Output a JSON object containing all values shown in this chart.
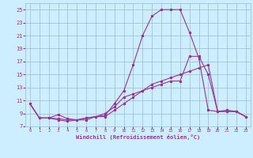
{
  "xlabel": "Windchill (Refroidissement éolien,°C)",
  "xlim": [
    -0.5,
    23.5
  ],
  "ylim": [
    7,
    26
  ],
  "yticks": [
    7,
    9,
    11,
    13,
    15,
    17,
    19,
    21,
    23,
    25
  ],
  "xticks": [
    0,
    1,
    2,
    3,
    4,
    5,
    6,
    7,
    8,
    9,
    10,
    11,
    12,
    13,
    14,
    15,
    16,
    17,
    18,
    19,
    20,
    21,
    22,
    23
  ],
  "background_color": "#cceeff",
  "line_color": "#993399",
  "grid_color": "#99bbcc",
  "line1_x": [
    0,
    1,
    2,
    3,
    4,
    5,
    6,
    7,
    8,
    9,
    10,
    11,
    12,
    13,
    14,
    15,
    16,
    17,
    18,
    19,
    20,
    21,
    22,
    23
  ],
  "line1_y": [
    10.5,
    8.3,
    8.3,
    8.0,
    7.8,
    8.0,
    8.3,
    8.5,
    8.7,
    10.5,
    12.5,
    16.5,
    21.0,
    24.0,
    25.0,
    25.0,
    25.0,
    21.5,
    17.5,
    9.5,
    9.3,
    9.5,
    9.3,
    8.5
  ],
  "line2_x": [
    0,
    1,
    2,
    3,
    4,
    5,
    6,
    7,
    8,
    9,
    10,
    11,
    12,
    13,
    14,
    15,
    16,
    17,
    18,
    19,
    20,
    21,
    22,
    23
  ],
  "line2_y": [
    10.5,
    8.3,
    8.3,
    8.8,
    8.2,
    8.0,
    8.3,
    8.5,
    9.0,
    10.0,
    11.5,
    12.0,
    12.5,
    13.0,
    13.5,
    14.0,
    14.0,
    17.8,
    17.8,
    15.0,
    9.3,
    9.3,
    9.3,
    8.5
  ],
  "line3_x": [
    0,
    1,
    2,
    3,
    4,
    5,
    6,
    7,
    8,
    9,
    10,
    11,
    12,
    13,
    14,
    15,
    16,
    17,
    18,
    19,
    20,
    21,
    22,
    23
  ],
  "line3_y": [
    10.5,
    8.3,
    8.3,
    8.2,
    8.0,
    8.0,
    8.0,
    8.5,
    8.5,
    9.5,
    10.5,
    11.5,
    12.5,
    13.5,
    14.0,
    14.5,
    15.0,
    15.5,
    16.0,
    16.5,
    9.3,
    9.3,
    9.3,
    8.5
  ]
}
